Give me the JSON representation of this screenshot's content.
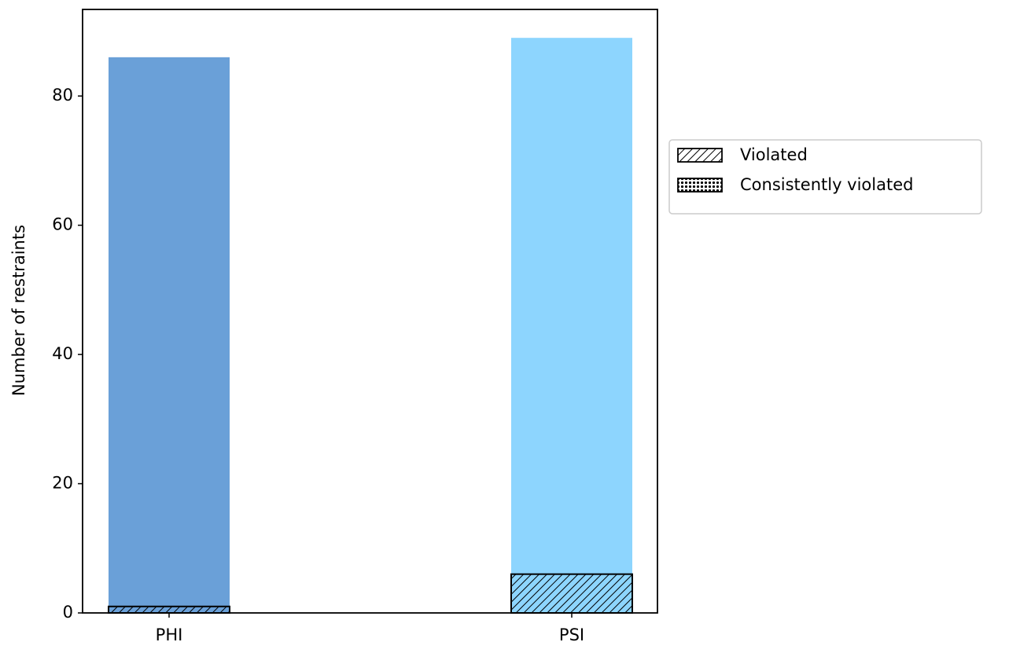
{
  "chart_data": {
    "type": "bar",
    "categories": [
      "PHI",
      "PSI"
    ],
    "values": [
      86,
      89
    ],
    "colors": [
      "#6aa0d8",
      "#8dd5fe"
    ],
    "series": [
      {
        "name": "Violated",
        "hatch": "diagonal",
        "values": [
          1,
          6
        ]
      },
      {
        "name": "Consistently violated",
        "hatch": "cross",
        "values": [
          0,
          0
        ]
      }
    ],
    "ylabel": "Number of restraints",
    "ylim": [
      0,
      93.4
    ],
    "yticks": [
      0,
      20,
      40,
      60,
      80
    ],
    "legend": "outside-right"
  }
}
